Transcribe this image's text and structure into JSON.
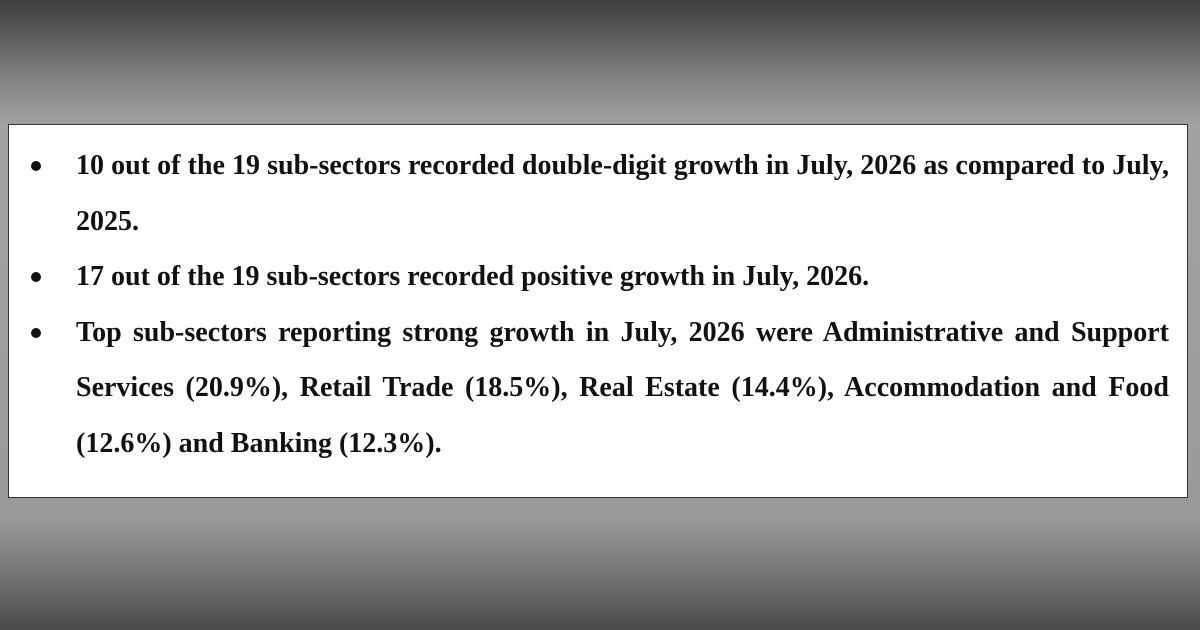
{
  "bullets": [
    "10 out of the 19 sub-sectors recorded double-digit growth in July, 2026 as compared to July, 2025.",
    "17 out of the 19 sub-sectors recorded positive growth in July, 2026.",
    "Top sub-sectors reporting strong growth in July, 2026 were Administrative and Support Services (20.9%), Retail Trade (18.5%), Real Estate (14.4%), Accommodation and Food (12.6%) and Banking (12.3%)."
  ]
}
